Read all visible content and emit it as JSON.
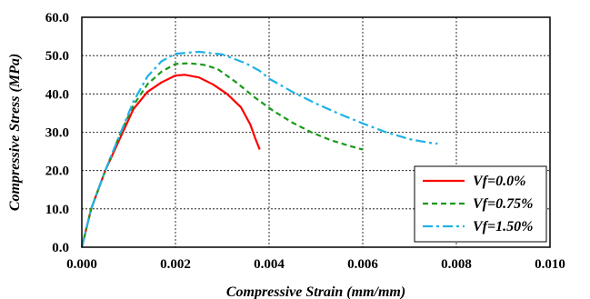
{
  "chart_data": {
    "type": "line",
    "title": "",
    "xlabel": "Compressive Strain (mm/mm)",
    "ylabel": "Compressive Stress (MPa)",
    "xlim": [
      0,
      0.01
    ],
    "ylim": [
      0,
      60
    ],
    "x_ticks": [
      "0.000",
      "0.002",
      "0.004",
      "0.006",
      "0.008",
      "0.010"
    ],
    "y_ticks": [
      "0.0",
      "10.0",
      "20.0",
      "30.0",
      "40.0",
      "50.0",
      "60.0"
    ],
    "grid": true,
    "legend_position": "bottom-right",
    "series": [
      {
        "name": "Vf=0.0%",
        "color": "#ff0000",
        "dash": "solid",
        "points": [
          [
            0,
            0
          ],
          [
            0.0002,
            10
          ],
          [
            0.0005,
            20
          ],
          [
            0.0008,
            28
          ],
          [
            0.0011,
            36
          ],
          [
            0.0014,
            40.5
          ],
          [
            0.0017,
            43
          ],
          [
            0.002,
            44.8
          ],
          [
            0.0022,
            45
          ],
          [
            0.0025,
            44.3
          ],
          [
            0.0028,
            42.5
          ],
          [
            0.0031,
            40
          ],
          [
            0.0034,
            36.5
          ],
          [
            0.0036,
            32
          ],
          [
            0.0037,
            28.5
          ],
          [
            0.0038,
            25.5
          ]
        ]
      },
      {
        "name": "Vf=0.75%",
        "color": "#1a9a1a",
        "dash": "dashed",
        "points": [
          [
            0,
            0
          ],
          [
            0.0002,
            10
          ],
          [
            0.0005,
            20
          ],
          [
            0.0008,
            29
          ],
          [
            0.0011,
            37
          ],
          [
            0.0014,
            42.5
          ],
          [
            0.0017,
            45.8
          ],
          [
            0.002,
            47.8
          ],
          [
            0.0023,
            48
          ],
          [
            0.0026,
            47.6
          ],
          [
            0.0029,
            46.5
          ],
          [
            0.0033,
            43
          ],
          [
            0.0037,
            39
          ],
          [
            0.0041,
            35.5
          ],
          [
            0.0045,
            32.5
          ],
          [
            0.0049,
            30
          ],
          [
            0.0053,
            28
          ],
          [
            0.0057,
            26.5
          ],
          [
            0.006,
            25.5
          ]
        ]
      },
      {
        "name": "Vf=1.50%",
        "color": "#1fb2e6",
        "dash": "dashdot",
        "points": [
          [
            0,
            0
          ],
          [
            0.0002,
            10
          ],
          [
            0.0005,
            20
          ],
          [
            0.0008,
            29
          ],
          [
            0.0011,
            38
          ],
          [
            0.0014,
            44.5
          ],
          [
            0.0017,
            48.5
          ],
          [
            0.002,
            50.5
          ],
          [
            0.0025,
            51
          ],
          [
            0.003,
            50.3
          ],
          [
            0.0035,
            48
          ],
          [
            0.0038,
            46
          ],
          [
            0.004,
            44
          ],
          [
            0.0045,
            40.5
          ],
          [
            0.005,
            37.5
          ],
          [
            0.0055,
            34.8
          ],
          [
            0.006,
            32.3
          ],
          [
            0.0065,
            30
          ],
          [
            0.007,
            28.2
          ],
          [
            0.0074,
            27.3
          ],
          [
            0.0076,
            27
          ]
        ]
      }
    ]
  }
}
